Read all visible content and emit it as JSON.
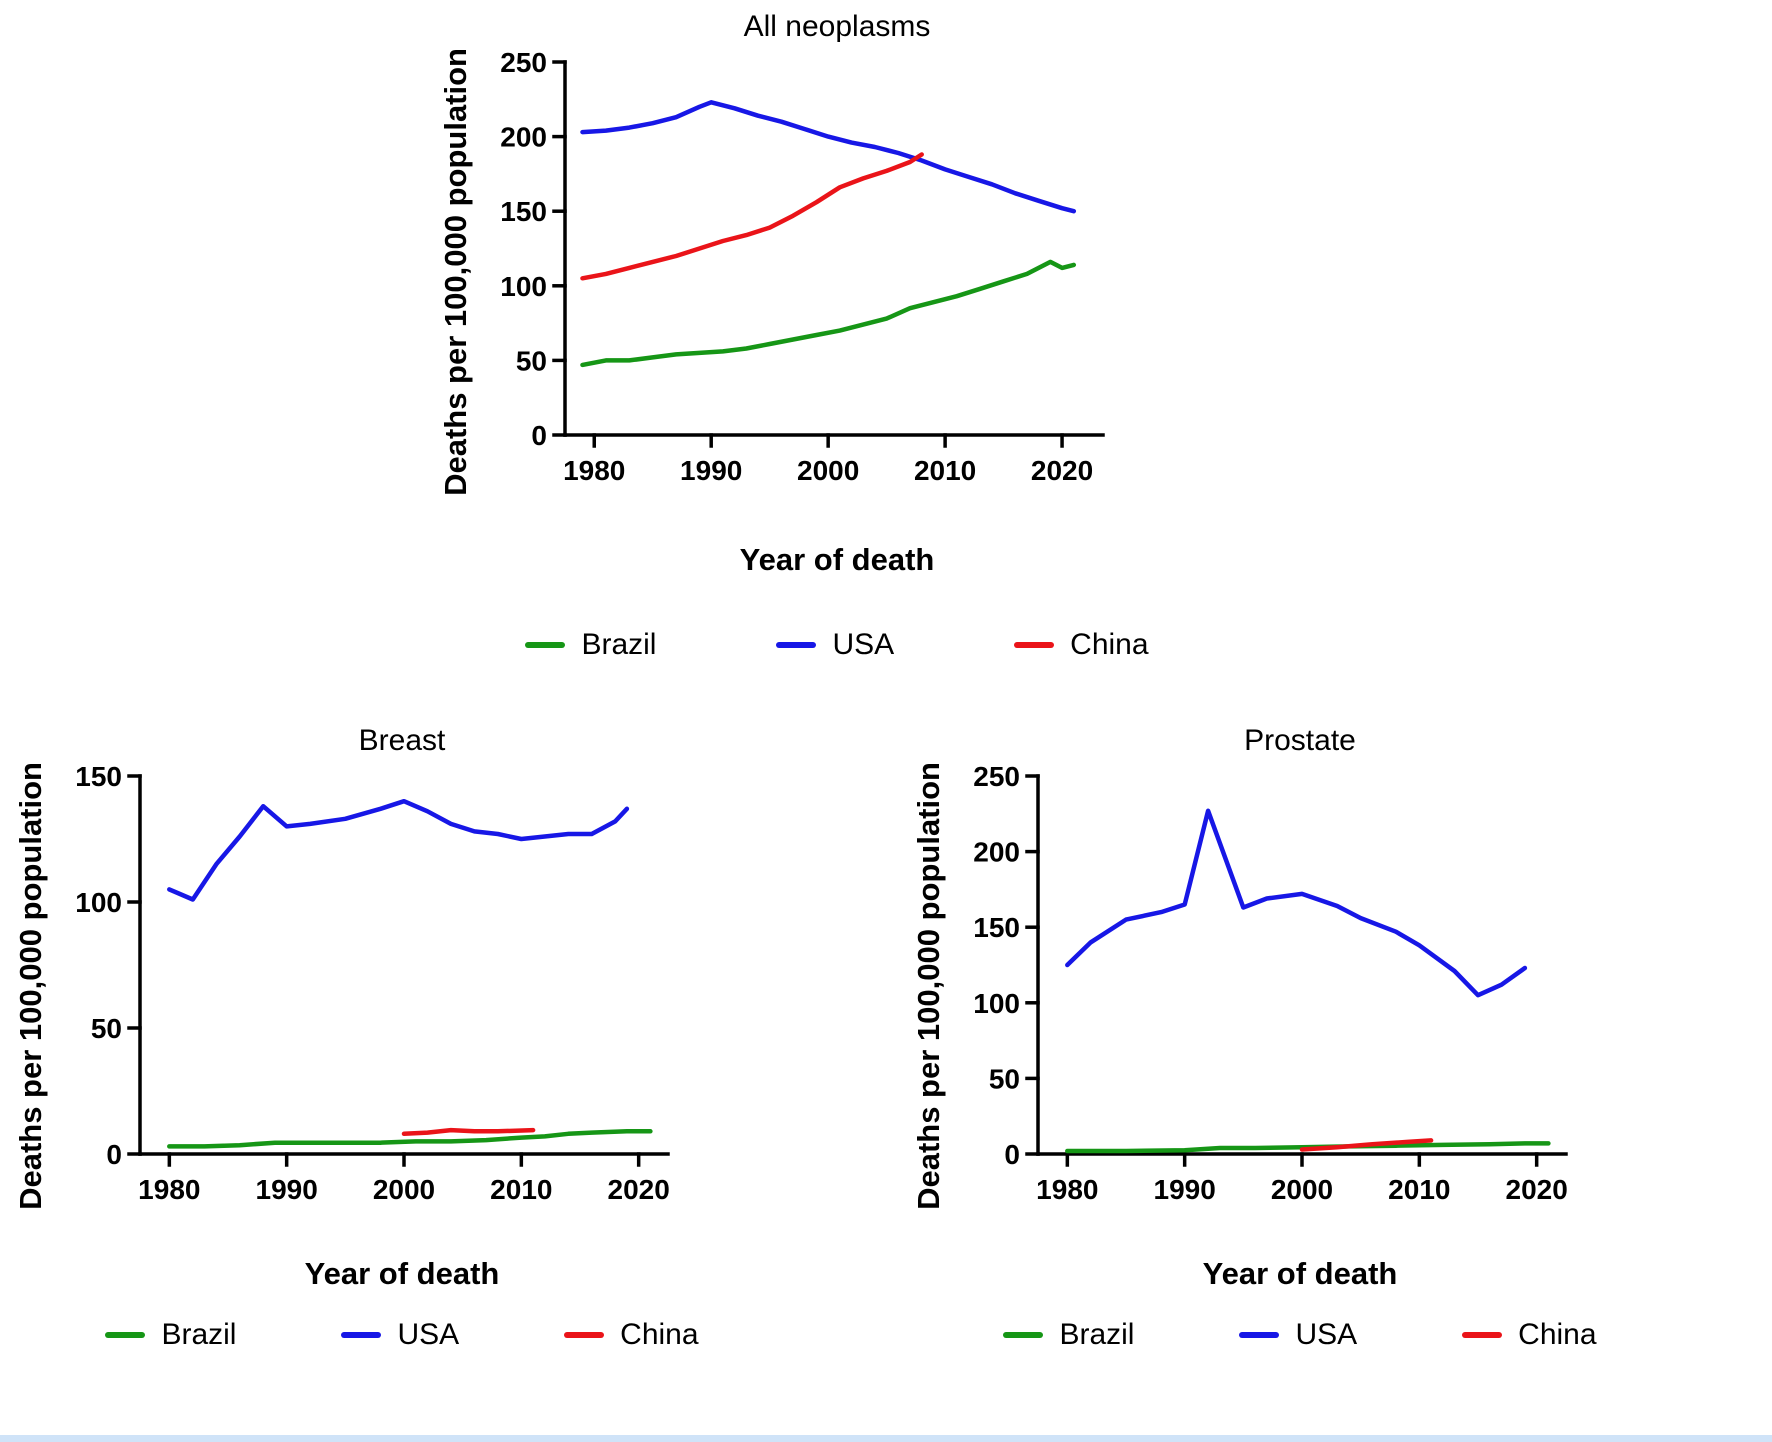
{
  "page": {
    "background": "#ffffff",
    "footer_bar_color": "#cfe3f8"
  },
  "legend": {
    "items": [
      {
        "label": "Brazil",
        "color": "#169616"
      },
      {
        "label": "USA",
        "color": "#1717e6"
      },
      {
        "label": "China",
        "color": "#ea1419"
      }
    ]
  },
  "chart_data": [
    {
      "id": "all-neoplasms",
      "type": "line",
      "title": "All neoplasms",
      "xlabel": "Year of death",
      "ylabel": "Deaths per 100,000 population",
      "xlim": [
        1977.5,
        2023.5
      ],
      "ylim": [
        0,
        250
      ],
      "xticks": [
        1980,
        1990,
        2000,
        2010,
        2020
      ],
      "yticks": [
        0,
        50,
        100,
        150,
        200,
        250
      ],
      "grid": false,
      "legend_position": "bottom",
      "series": [
        {
          "name": "Brazil",
          "color": "#169616",
          "x": [
            1979,
            1981,
            1983,
            1985,
            1987,
            1989,
            1991,
            1993,
            1995,
            1997,
            1999,
            2001,
            2003,
            2005,
            2007,
            2009,
            2011,
            2013,
            2015,
            2017,
            2019,
            2020,
            2021
          ],
          "y": [
            47,
            50,
            50,
            52,
            54,
            55,
            56,
            58,
            61,
            64,
            67,
            70,
            74,
            78,
            85,
            89,
            93,
            98,
            103,
            108,
            116,
            112,
            114
          ]
        },
        {
          "name": "USA",
          "color": "#1717e6",
          "x": [
            1979,
            1981,
            1983,
            1985,
            1987,
            1989,
            1990,
            1992,
            1994,
            1996,
            1998,
            2000,
            2002,
            2004,
            2006,
            2008,
            2010,
            2012,
            2014,
            2016,
            2018,
            2020,
            2021
          ],
          "y": [
            203,
            204,
            206,
            209,
            213,
            220,
            223,
            219,
            214,
            210,
            205,
            200,
            196,
            193,
            189,
            184,
            178,
            173,
            168,
            162,
            157,
            152,
            150
          ]
        },
        {
          "name": "China",
          "color": "#ea1419",
          "x": [
            1979,
            1981,
            1983,
            1985,
            1987,
            1989,
            1991,
            1993,
            1995,
            1997,
            1999,
            2001,
            2003,
            2005,
            2007,
            2008
          ],
          "y": [
            105,
            108,
            112,
            116,
            120,
            125,
            130,
            134,
            139,
            147,
            156,
            166,
            172,
            177,
            183,
            188
          ]
        }
      ]
    },
    {
      "id": "breast",
      "type": "line",
      "title": "Breast",
      "xlabel": "Year of death",
      "ylabel": "Deaths per 100,000 population",
      "xlim": [
        1977.5,
        2022.5
      ],
      "ylim": [
        0,
        150
      ],
      "xticks": [
        1980,
        1990,
        2000,
        2010,
        2020
      ],
      "yticks": [
        0,
        50,
        100,
        150
      ],
      "grid": false,
      "legend_position": "bottom",
      "series": [
        {
          "name": "Brazil",
          "color": "#169616",
          "x": [
            1980,
            1983,
            1986,
            1989,
            1992,
            1995,
            1998,
            2001,
            2004,
            2007,
            2010,
            2012,
            2014,
            2016,
            2019,
            2021
          ],
          "y": [
            3,
            3,
            3.5,
            4.5,
            4.5,
            4.5,
            4.5,
            5,
            5,
            5.5,
            6.5,
            7,
            8,
            8.5,
            9,
            9
          ]
        },
        {
          "name": "USA",
          "color": "#1717e6",
          "x": [
            1980,
            1982,
            1984,
            1986,
            1988,
            1990,
            1992,
            1995,
            1998,
            2000,
            2002,
            2004,
            2006,
            2008,
            2010,
            2012,
            2014,
            2016,
            2018,
            2019
          ],
          "y": [
            105,
            101,
            115,
            126,
            138,
            130,
            131,
            133,
            137,
            140,
            136,
            131,
            128,
            127,
            125,
            126,
            127,
            127,
            132,
            137
          ]
        },
        {
          "name": "China",
          "color": "#ea1419",
          "x": [
            2000,
            2002,
            2004,
            2006,
            2008,
            2011
          ],
          "y": [
            8,
            8.5,
            9.5,
            9,
            9,
            9.5
          ]
        }
      ]
    },
    {
      "id": "prostate",
      "type": "line",
      "title": "Prostate",
      "xlabel": "Year of death",
      "ylabel": "Deaths per 100,000 population",
      "xlim": [
        1977.5,
        2022.5
      ],
      "ylim": [
        0,
        250
      ],
      "xticks": [
        1980,
        1990,
        2000,
        2010,
        2020
      ],
      "yticks": [
        0,
        50,
        100,
        150,
        200,
        250
      ],
      "grid": false,
      "legend_position": "bottom",
      "series": [
        {
          "name": "Brazil",
          "color": "#169616",
          "x": [
            1980,
            1985,
            1990,
            1993,
            1996,
            2000,
            2004,
            2008,
            2012,
            2016,
            2019,
            2021
          ],
          "y": [
            2,
            2,
            2.5,
            4,
            4,
            4.5,
            5,
            5.5,
            6,
            6.5,
            7,
            7
          ]
        },
        {
          "name": "USA",
          "color": "#1717e6",
          "x": [
            1980,
            1982,
            1985,
            1988,
            1990,
            1992,
            1995,
            1997,
            2000,
            2003,
            2005,
            2008,
            2010,
            2013,
            2015,
            2017,
            2019
          ],
          "y": [
            125,
            140,
            155,
            160,
            165,
            227,
            163,
            169,
            172,
            164,
            156,
            147,
            138,
            121,
            105,
            112,
            123
          ]
        },
        {
          "name": "China",
          "color": "#ea1419",
          "x": [
            2000,
            2003,
            2006,
            2009,
            2011
          ],
          "y": [
            3,
            4.5,
            6.5,
            8,
            9
          ]
        }
      ]
    }
  ]
}
